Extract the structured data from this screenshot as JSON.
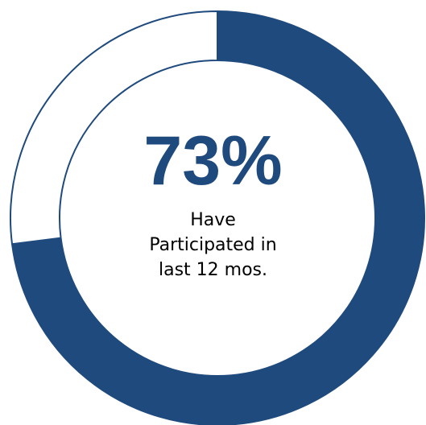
{
  "chart_data": {
    "type": "pie",
    "value_label": "73%",
    "caption_lines": [
      "Have",
      "Participated in",
      "last 12 mos."
    ],
    "slices": [
      {
        "value": 73
      },
      {
        "value": 27
      }
    ],
    "colors": {
      "filled": "#1f4a7d",
      "remaining": "#ffffff",
      "outline": "#1f4a7d",
      "value_text": "#1f4a7d",
      "caption_text": "#000000"
    }
  }
}
